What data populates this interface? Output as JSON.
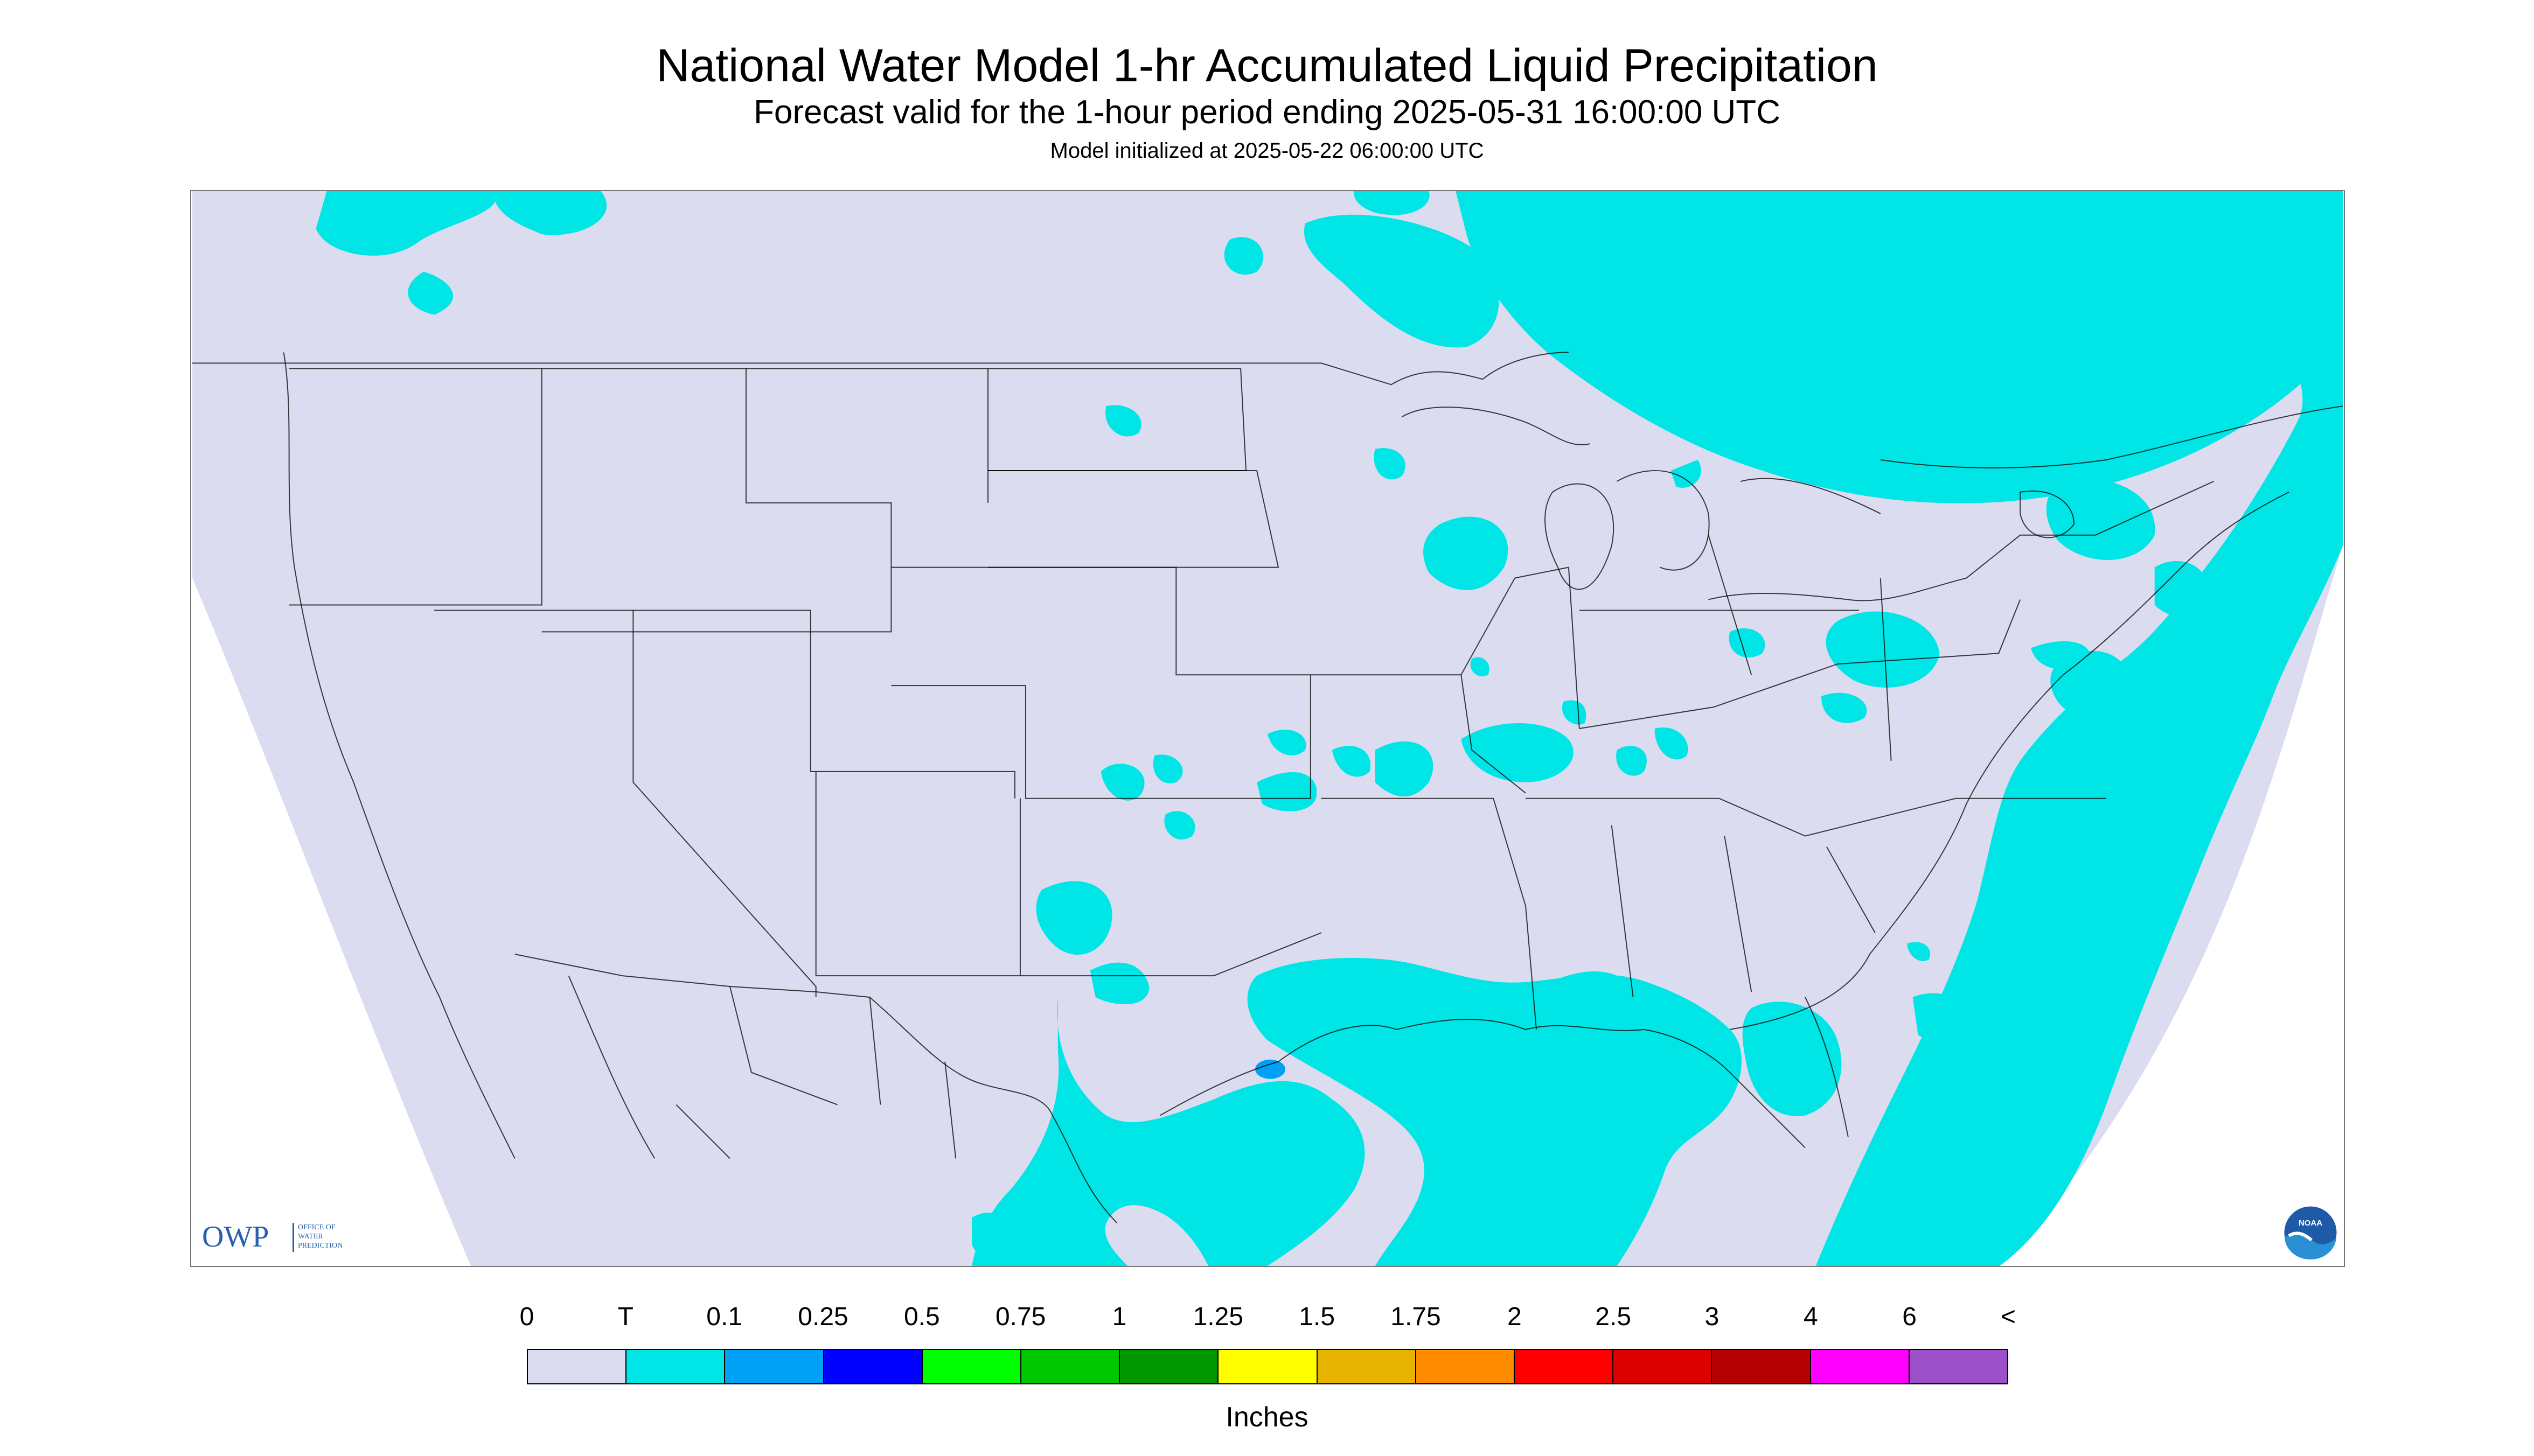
{
  "header": {
    "title": "National Water Model 1-hr Accumulated Liquid Precipitation",
    "subtitle": "Forecast valid for the 1-hour period ending 2025-05-31 16:00:00 UTC",
    "init_text": "Model initialized at 2025-05-22 06:00:00 UTC"
  },
  "map": {
    "background_color": "#ffffff",
    "domain_color": "#dcdcf0",
    "land_line_color": "#000000",
    "precip_trace_color": "#00e5e5",
    "precip_010_color": "#00a0f5",
    "icons": [
      "owp-logo",
      "noaa-logo"
    ]
  },
  "logos": {
    "owp_letters": "OWP",
    "owp_subtitle": "OFFICE OF\nWATER\nPREDICTION",
    "noaa_text": "NOAA"
  },
  "legend": {
    "tick_labels": [
      "0",
      "T",
      "0.1",
      "0.25",
      "0.5",
      "0.75",
      "1",
      "1.25",
      "1.5",
      "1.75",
      "2",
      "2.5",
      "3",
      "4",
      "6",
      "<"
    ],
    "colors": [
      "#dcdcf0",
      "#00e5e5",
      "#00a0f5",
      "#0000ff",
      "#00ff00",
      "#00c800",
      "#009600",
      "#ffff00",
      "#e6b400",
      "#ff8c00",
      "#ff0000",
      "#dc0000",
      "#b40000",
      "#ff00ff",
      "#9b4fc8"
    ],
    "units_label": "Inches"
  }
}
